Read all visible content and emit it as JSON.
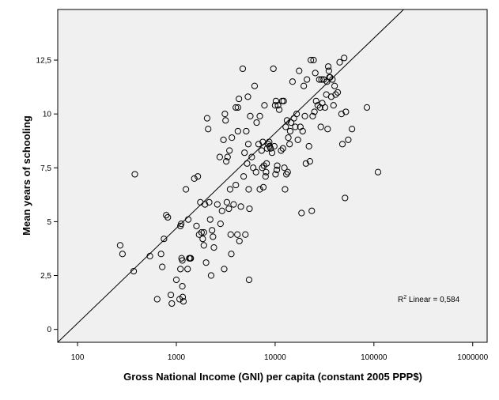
{
  "chart_data": {
    "type": "scatter",
    "xlabel": "Gross National Income (GNI) per capita (constant 2005 PPP$)",
    "ylabel": "Mean years of schooling",
    "x_scale": "log",
    "xlim": [
      63,
      1400000
    ],
    "ylim": [
      -0.6,
      14.85
    ],
    "x_ticks": [
      100,
      1000,
      10000,
      100000,
      1000000
    ],
    "x_tick_labels": [
      "100",
      "1000",
      "10000",
      "100000",
      "1000000"
    ],
    "y_ticks": [
      0,
      2.5,
      5,
      7.5,
      10,
      12.5
    ],
    "y_tick_labels": [
      "0",
      "2,5",
      "5",
      "7,5",
      "10",
      "12,5"
    ],
    "grid": false,
    "fit_line": {
      "type": "linear",
      "from": [
        63,
        -0.6
      ],
      "to": [
        200000,
        14.85
      ]
    },
    "annotation": {
      "prefix": "R",
      "superscript": "2",
      "text": " Linear = 0,584"
    },
    "points": [
      [
        270,
        3.9
      ],
      [
        285,
        3.5
      ],
      [
        370,
        2.7
      ],
      [
        380,
        7.2
      ],
      [
        540,
        3.4
      ],
      [
        640,
        1.4
      ],
      [
        700,
        3.5
      ],
      [
        720,
        2.9
      ],
      [
        750,
        4.2
      ],
      [
        790,
        5.3
      ],
      [
        820,
        5.2
      ],
      [
        880,
        1.6
      ],
      [
        900,
        1.2
      ],
      [
        1000,
        2.3
      ],
      [
        1080,
        1.4
      ],
      [
        1100,
        2.8
      ],
      [
        1100,
        4.8
      ],
      [
        1120,
        4.9
      ],
      [
        1130,
        3.3
      ],
      [
        1150,
        3.2
      ],
      [
        1150,
        2.0
      ],
      [
        1160,
        1.5
      ],
      [
        1180,
        1.3
      ],
      [
        1250,
        6.5
      ],
      [
        1300,
        2.8
      ],
      [
        1320,
        5.1
      ],
      [
        1350,
        3.3
      ],
      [
        1380,
        3.3
      ],
      [
        1400,
        3.3
      ],
      [
        1520,
        7.0
      ],
      [
        1600,
        4.8
      ],
      [
        1650,
        7.1
      ],
      [
        1700,
        4.4
      ],
      [
        1750,
        5.9
      ],
      [
        1800,
        4.5
      ],
      [
        1850,
        4.2
      ],
      [
        1900,
        4.5
      ],
      [
        1900,
        3.9
      ],
      [
        1950,
        5.8
      ],
      [
        2000,
        3.1
      ],
      [
        2050,
        9.8
      ],
      [
        2100,
        9.3
      ],
      [
        2150,
        5.9
      ],
      [
        2200,
        5.1
      ],
      [
        2250,
        2.5
      ],
      [
        2300,
        4.6
      ],
      [
        2350,
        4.3
      ],
      [
        2400,
        3.8
      ],
      [
        2600,
        5.8
      ],
      [
        2750,
        8.0
      ],
      [
        2800,
        4.9
      ],
      [
        2900,
        5.5
      ],
      [
        3000,
        8.8
      ],
      [
        3050,
        2.8
      ],
      [
        3100,
        10.0
      ],
      [
        3150,
        9.7
      ],
      [
        3200,
        7.8
      ],
      [
        3250,
        5.9
      ],
      [
        3300,
        8.0
      ],
      [
        3400,
        5.6
      ],
      [
        3450,
        8.3
      ],
      [
        3500,
        6.5
      ],
      [
        3550,
        4.4
      ],
      [
        3600,
        3.5
      ],
      [
        3650,
        8.9
      ],
      [
        3800,
        5.8
      ],
      [
        4000,
        6.7
      ],
      [
        4000,
        10.3
      ],
      [
        4150,
        4.4
      ],
      [
        4200,
        10.3
      ],
      [
        4200,
        9.2
      ],
      [
        4300,
        10.7
      ],
      [
        4350,
        4.1
      ],
      [
        4500,
        5.7
      ],
      [
        4700,
        12.1
      ],
      [
        4800,
        7.1
      ],
      [
        4900,
        8.2
      ],
      [
        5000,
        4.4
      ],
      [
        5100,
        9.2
      ],
      [
        5200,
        7.7
      ],
      [
        5300,
        10.8
      ],
      [
        5350,
        8.6
      ],
      [
        5400,
        6.5
      ],
      [
        5450,
        2.3
      ],
      [
        5500,
        5.6
      ],
      [
        5600,
        9.9
      ],
      [
        5800,
        8.0
      ],
      [
        6000,
        7.5
      ],
      [
        6200,
        11.3
      ],
      [
        6400,
        7.3
      ],
      [
        6500,
        9.6
      ],
      [
        6800,
        8.6
      ],
      [
        7000,
        9.9
      ],
      [
        7000,
        6.5
      ],
      [
        7300,
        8.3
      ],
      [
        7400,
        7.5
      ],
      [
        7500,
        8.7
      ],
      [
        7600,
        6.6
      ],
      [
        7700,
        7.6
      ],
      [
        7800,
        10.4
      ],
      [
        8000,
        7.1
      ],
      [
        8100,
        7.3
      ],
      [
        8200,
        7.7
      ],
      [
        8300,
        8.4
      ],
      [
        8500,
        8.6
      ],
      [
        8700,
        8.7
      ],
      [
        8800,
        8.5
      ],
      [
        9000,
        8.4
      ],
      [
        9300,
        8.2
      ],
      [
        9600,
        12.1
      ],
      [
        9800,
        8.5
      ],
      [
        10000,
        10.4
      ],
      [
        10100,
        7.2
      ],
      [
        10200,
        10.6
      ],
      [
        10400,
        7.4
      ],
      [
        10500,
        7.6
      ],
      [
        10700,
        10.4
      ],
      [
        11000,
        10.2
      ],
      [
        11500,
        8.3
      ],
      [
        11800,
        10.6
      ],
      [
        12000,
        8.4
      ],
      [
        12200,
        10.6
      ],
      [
        12400,
        7.5
      ],
      [
        12600,
        6.5
      ],
      [
        12800,
        9.4
      ],
      [
        13000,
        7.2
      ],
      [
        13200,
        9.7
      ],
      [
        13400,
        7.3
      ],
      [
        13600,
        8.9
      ],
      [
        14000,
        8.6
      ],
      [
        14200,
        9.2
      ],
      [
        14500,
        9.6
      ],
      [
        15000,
        11.5
      ],
      [
        15500,
        9.8
      ],
      [
        16000,
        9.4
      ],
      [
        16500,
        10.0
      ],
      [
        17000,
        8.8
      ],
      [
        17500,
        12.0
      ],
      [
        18000,
        9.4
      ],
      [
        18500,
        5.4
      ],
      [
        19000,
        9.2
      ],
      [
        19500,
        11.3
      ],
      [
        20000,
        9.9
      ],
      [
        20500,
        7.7
      ],
      [
        21000,
        11.6
      ],
      [
        22000,
        8.5
      ],
      [
        22500,
        7.8
      ],
      [
        23000,
        12.5
      ],
      [
        23500,
        5.5
      ],
      [
        24000,
        9.9
      ],
      [
        24500,
        12.5
      ],
      [
        25000,
        10.1
      ],
      [
        25500,
        11.9
      ],
      [
        26000,
        10.6
      ],
      [
        27000,
        10.4
      ],
      [
        28000,
        11.6
      ],
      [
        28500,
        10.3
      ],
      [
        29000,
        9.4
      ],
      [
        29500,
        11.6
      ],
      [
        30000,
        10.5
      ],
      [
        31000,
        11.6
      ],
      [
        32000,
        10.3
      ],
      [
        33000,
        10.9
      ],
      [
        33500,
        11.5
      ],
      [
        34000,
        9.3
      ],
      [
        34500,
        12.2
      ],
      [
        35000,
        12.0
      ],
      [
        35500,
        11.7
      ],
      [
        36000,
        11.7
      ],
      [
        37000,
        10.8
      ],
      [
        38000,
        11.6
      ],
      [
        39000,
        10.4
      ],
      [
        40000,
        11.3
      ],
      [
        41000,
        10.9
      ],
      [
        43000,
        11.0
      ],
      [
        45000,
        12.4
      ],
      [
        47000,
        10.0
      ],
      [
        48000,
        8.6
      ],
      [
        50000,
        12.6
      ],
      [
        51000,
        6.1
      ],
      [
        52000,
        10.1
      ],
      [
        55000,
        8.8
      ],
      [
        60000,
        9.3
      ],
      [
        85000,
        10.3
      ],
      [
        110000,
        7.3
      ]
    ]
  }
}
